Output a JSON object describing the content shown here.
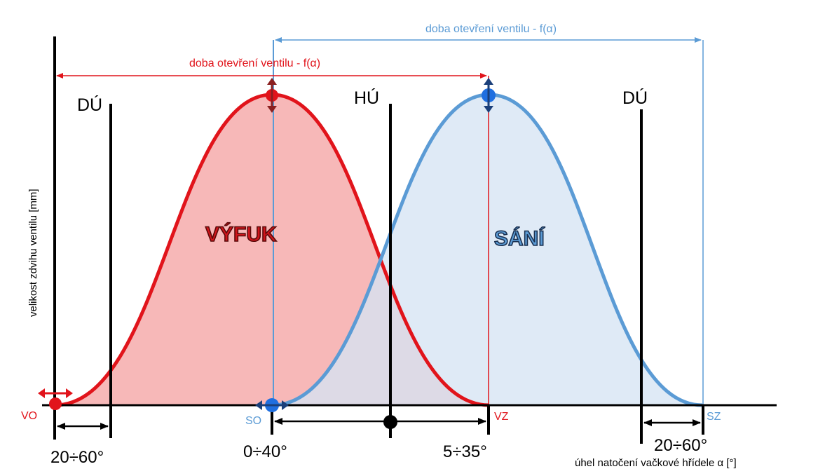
{
  "colors": {
    "exhaust": "#e1141b",
    "exhaust_fill": "#f7b8b8",
    "intake": "#5b9bd5",
    "intake_fill": "#dce8f5",
    "marker_blue": "#1f6fe0",
    "axis": "#000000"
  },
  "labels": {
    "ylabel": "velikost zdvihu ventilu [mm]",
    "xlabel": "úhel natočení vačkové hřídele α [°]",
    "exhaust_duration": "doba otevření ventilu - f(α)",
    "intake_duration": "doba otevření ventilu - f(α)",
    "exhaust": "VÝFUK",
    "intake": "SÁNÍ",
    "bdc_left": "DÚ",
    "tdc": "HÚ",
    "bdc_right": "DÚ",
    "vo": "VO",
    "so": "SO",
    "vz": "VZ",
    "sz": "SZ",
    "angle_vo": "20÷60°",
    "angle_so": "0÷40°",
    "angle_vz": "5÷35°",
    "angle_sz": "20÷60°"
  },
  "icons": {
    "lift_arrows": "double-arrow-icon"
  }
}
